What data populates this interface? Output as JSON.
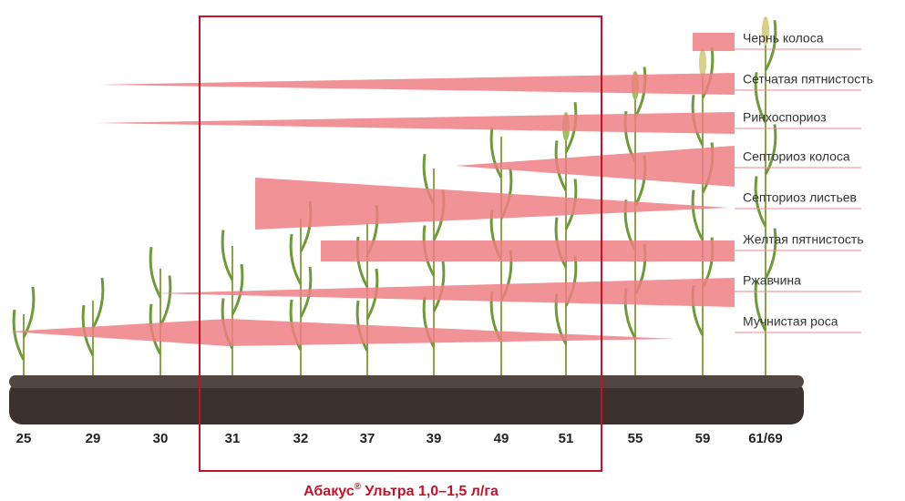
{
  "diseases": [
    "Чернь колоса",
    "Сетчатая пятнистость",
    "Ринхоспориоз",
    "Септориоз колоса",
    "Септориоз листьев",
    "Желтая пятнистость",
    "Ржавчина",
    "Мучнистая роса"
  ],
  "stages": [
    "25",
    "29",
    "30",
    "31",
    "32",
    "37",
    "39",
    "49",
    "51",
    "55",
    "59",
    "61/69"
  ],
  "product": {
    "name": "Абакус",
    "mark": "®",
    "rate": " Ультра 1,0–1,5 л/га"
  }
}
